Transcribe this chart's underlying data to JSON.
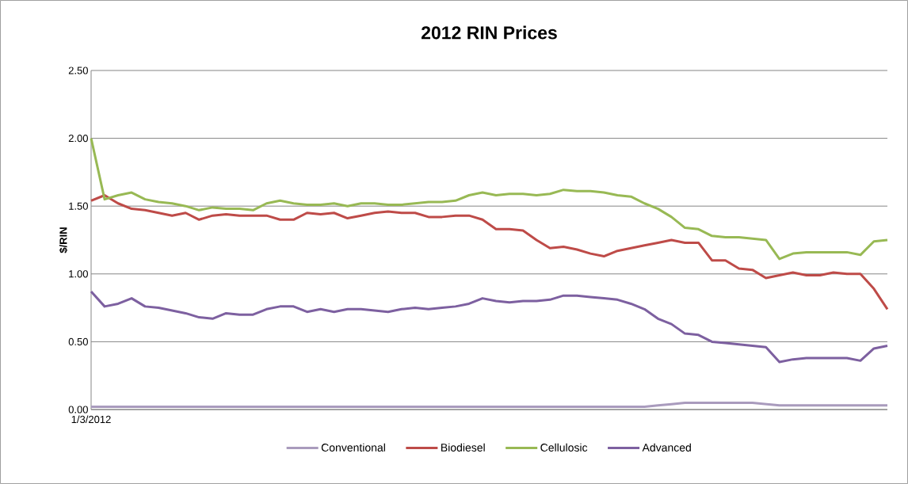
{
  "chart_data": {
    "type": "line",
    "title": "2012 RIN Prices",
    "ylabel": "$/RIN",
    "categories": [
      "1/3/2012",
      null,
      null,
      null,
      null,
      null,
      null,
      null,
      null,
      null,
      null,
      null,
      null,
      null,
      null,
      null,
      null,
      null,
      null,
      null,
      null,
      null,
      null,
      null,
      null,
      null,
      null,
      null,
      null,
      null,
      null,
      null,
      null,
      null,
      null,
      null,
      null,
      null,
      null,
      null,
      null,
      null,
      null,
      null,
      null,
      null,
      null,
      null,
      null,
      null,
      null,
      null,
      null,
      null,
      null,
      null,
      null,
      null,
      null,
      null
    ],
    "ylim": [
      0,
      2.5
    ],
    "yticks": [
      {
        "value": 0,
        "label": "0.00"
      },
      {
        "value": 0.5,
        "label": "0.50"
      },
      {
        "value": 1,
        "label": "1.00"
      },
      {
        "value": 1.5,
        "label": "1.50"
      },
      {
        "value": 2,
        "label": "2.00"
      },
      {
        "value": 2.5,
        "label": "2.50"
      }
    ],
    "grid": "y",
    "legend": "bottom",
    "marker": "none",
    "line_style": "solid",
    "series": [
      {
        "name": "Conventional",
        "color": "#a99bbd",
        "values": [
          0.02,
          0.02,
          0.02,
          0.02,
          0.02,
          0.02,
          0.02,
          0.02,
          0.02,
          0.02,
          0.02,
          0.02,
          0.02,
          0.02,
          0.02,
          0.02,
          0.02,
          0.02,
          0.02,
          0.02,
          0.02,
          0.02,
          0.02,
          0.02,
          0.02,
          0.02,
          0.02,
          0.02,
          0.02,
          0.02,
          0.02,
          0.02,
          0.02,
          0.02,
          0.02,
          0.02,
          0.02,
          0.02,
          0.02,
          0.02,
          0.02,
          0.02,
          0.03,
          0.04,
          0.05,
          0.05,
          0.05,
          0.05,
          0.05,
          0.05,
          0.04,
          0.03,
          0.03,
          0.03,
          0.03,
          0.03,
          0.03,
          0.03,
          0.03,
          0.03
        ]
      },
      {
        "name": "Biodiesel",
        "color": "#be4b48",
        "values": [
          1.54,
          1.58,
          1.52,
          1.48,
          1.47,
          1.45,
          1.43,
          1.45,
          1.4,
          1.43,
          1.44,
          1.43,
          1.43,
          1.43,
          1.4,
          1.4,
          1.45,
          1.44,
          1.45,
          1.41,
          1.43,
          1.45,
          1.46,
          1.45,
          1.45,
          1.42,
          1.42,
          1.43,
          1.43,
          1.4,
          1.33,
          1.33,
          1.32,
          1.25,
          1.19,
          1.2,
          1.18,
          1.15,
          1.13,
          1.17,
          1.19,
          1.21,
          1.23,
          1.25,
          1.23,
          1.23,
          1.1,
          1.1,
          1.04,
          1.03,
          0.97,
          0.99,
          1.01,
          0.99,
          0.99,
          1.01,
          1.0,
          1.0,
          0.89,
          0.74
        ]
      },
      {
        "name": "Cellulosic",
        "color": "#98b954",
        "values": [
          2.0,
          1.55,
          1.58,
          1.6,
          1.55,
          1.53,
          1.52,
          1.5,
          1.47,
          1.49,
          1.48,
          1.48,
          1.47,
          1.52,
          1.54,
          1.52,
          1.51,
          1.51,
          1.52,
          1.5,
          1.52,
          1.52,
          1.51,
          1.51,
          1.52,
          1.53,
          1.53,
          1.54,
          1.58,
          1.6,
          1.58,
          1.59,
          1.59,
          1.58,
          1.59,
          1.62,
          1.61,
          1.61,
          1.6,
          1.58,
          1.57,
          1.52,
          1.48,
          1.42,
          1.34,
          1.33,
          1.28,
          1.27,
          1.27,
          1.26,
          1.25,
          1.11,
          1.15,
          1.16,
          1.16,
          1.16,
          1.16,
          1.14,
          1.24,
          1.25
        ]
      },
      {
        "name": "Advanced",
        "color": "#7d60a0",
        "values": [
          0.87,
          0.76,
          0.78,
          0.82,
          0.76,
          0.75,
          0.73,
          0.71,
          0.68,
          0.67,
          0.71,
          0.7,
          0.7,
          0.74,
          0.76,
          0.76,
          0.72,
          0.74,
          0.72,
          0.74,
          0.74,
          0.73,
          0.72,
          0.74,
          0.75,
          0.74,
          0.75,
          0.76,
          0.78,
          0.82,
          0.8,
          0.79,
          0.8,
          0.8,
          0.81,
          0.84,
          0.84,
          0.83,
          0.82,
          0.81,
          0.78,
          0.74,
          0.67,
          0.63,
          0.56,
          0.55,
          0.5,
          0.49,
          0.48,
          0.47,
          0.46,
          0.35,
          0.37,
          0.38,
          0.38,
          0.38,
          0.38,
          0.36,
          0.45,
          0.47
        ]
      }
    ]
  }
}
